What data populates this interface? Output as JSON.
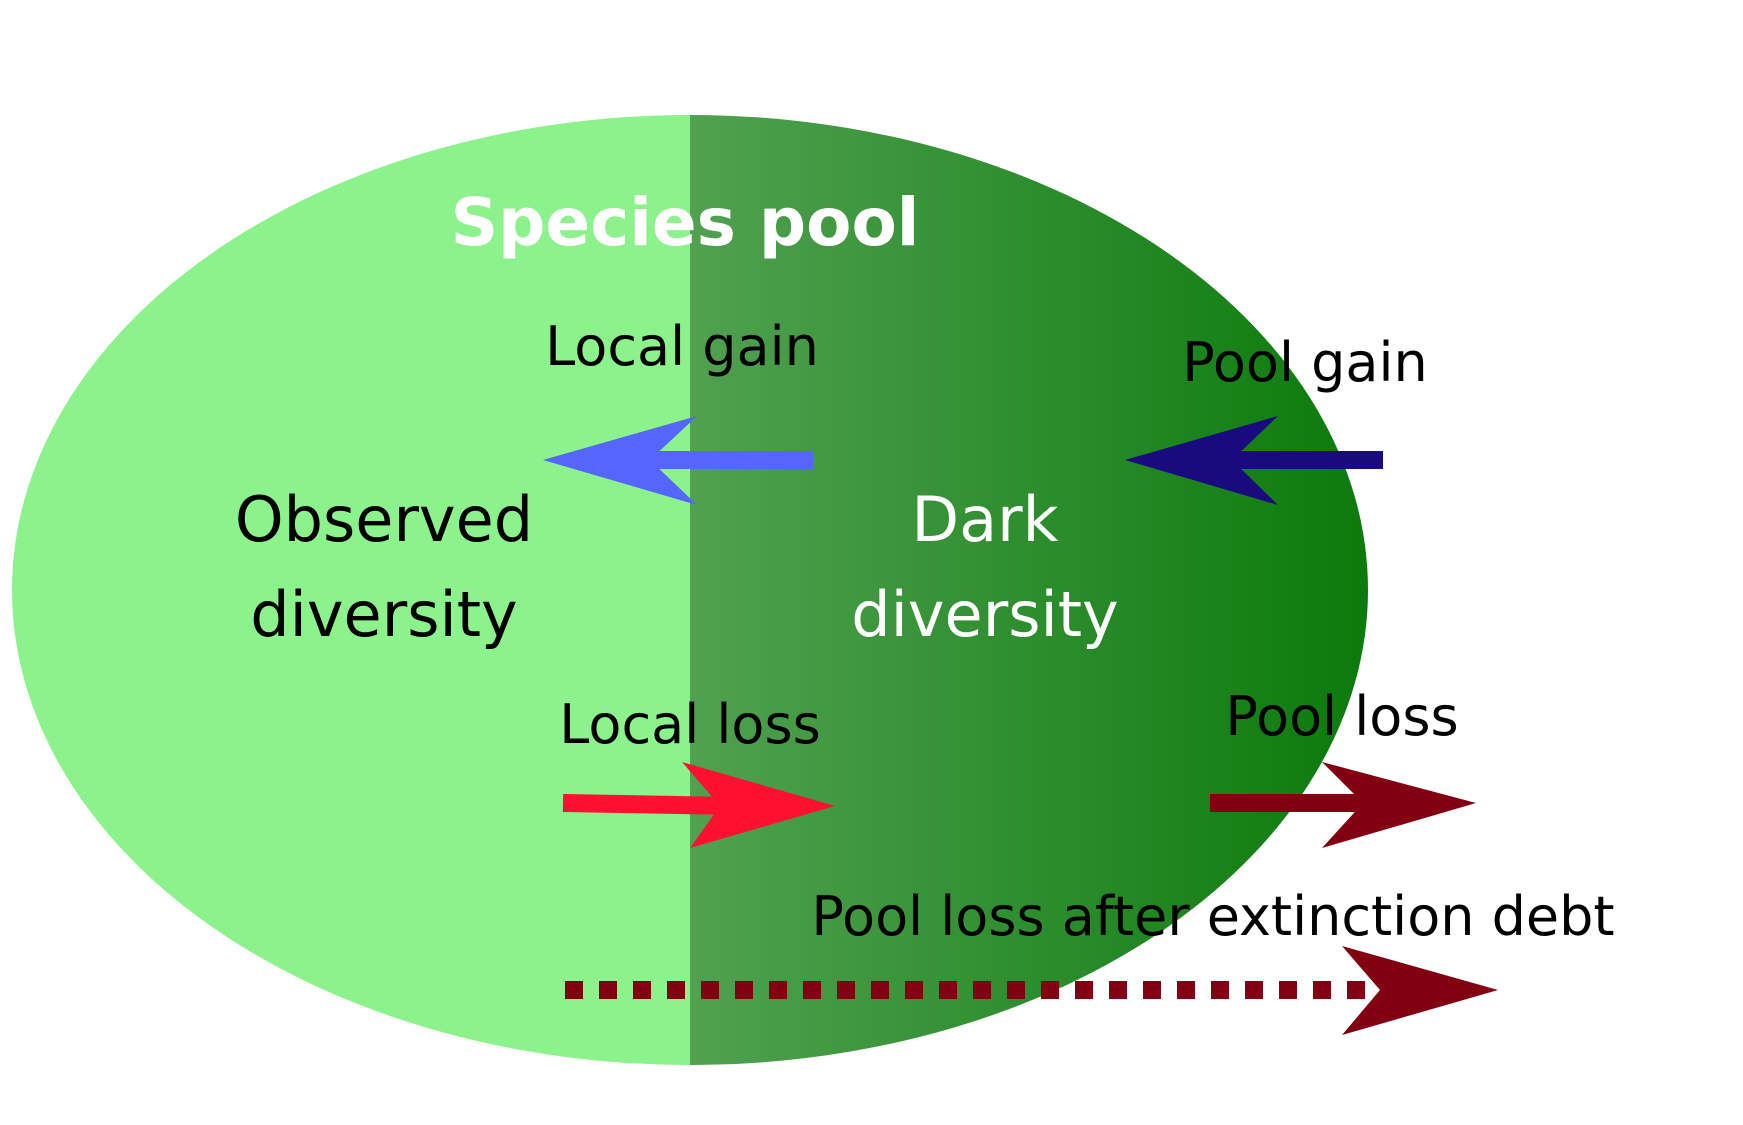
{
  "title": "Species pool",
  "regions": {
    "observed": {
      "line1": "Observed",
      "line2": "diversity"
    },
    "dark": {
      "line1": "Dark",
      "line2": "diversity"
    }
  },
  "arrows": {
    "local_gain": "Local gain",
    "pool_gain": "Pool gain",
    "local_loss": "Local loss",
    "pool_loss": "Pool loss",
    "pool_loss_debt": "Pool loss after extinction debt"
  },
  "colors": {
    "observed_fill": "#8cf28c",
    "dark_start": "#96c896",
    "dark_end": "#0b7a0b",
    "local_gain": "#5566ff",
    "pool_gain": "#1a0a80",
    "local_loss": "#ff1030",
    "pool_loss": "#820012",
    "title_text": "#ffffff",
    "dark_text": "#ffffff",
    "label_text": "#000000"
  }
}
